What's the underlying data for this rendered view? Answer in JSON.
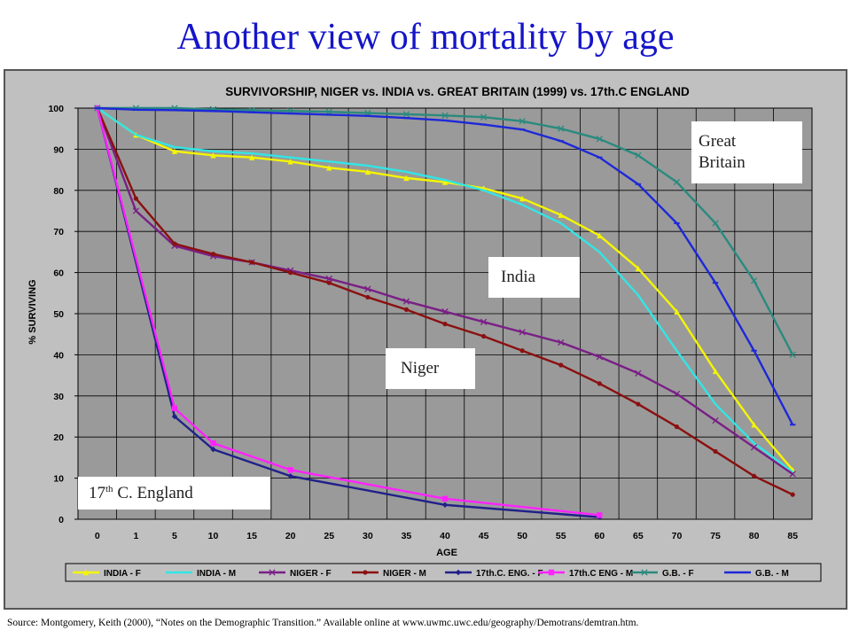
{
  "slide_title": "Another view of mortality by age",
  "source": "Source:   Montgomery, Keith (2000), “Notes on the Demographic Transition.”  Available online at www.uwmc.uwc.edu/geography/Demotrans/demtran.htm.",
  "callouts": {
    "great_britain_line1": "Great",
    "great_britain_line2": "Britain",
    "india": "India",
    "niger": "Niger",
    "england_prefix": "17",
    "england_sup": "th",
    "england_suffix": " C. England"
  },
  "chart_data": {
    "type": "line",
    "title": "SURVIVORSHIP, NIGER vs. INDIA vs. GREAT BRITAIN (1999) vs. 17th.C ENGLAND",
    "xlabel": "AGE",
    "ylabel": "% SURVIVING",
    "x": [
      0,
      1,
      5,
      10,
      15,
      20,
      25,
      30,
      35,
      40,
      45,
      50,
      55,
      60,
      65,
      70,
      75,
      80,
      85
    ],
    "x_tick_labels": [
      "0",
      "1",
      "5",
      "10",
      "15",
      "20",
      "25",
      "30",
      "35",
      "40",
      "45",
      "50",
      "55",
      "60",
      "65",
      "70",
      "75",
      "80",
      "85"
    ],
    "ylim": [
      0,
      100
    ],
    "y_ticks": [
      0,
      10,
      20,
      30,
      40,
      50,
      60,
      70,
      80,
      90,
      100
    ],
    "grid": true,
    "legend_position": "bottom",
    "series": [
      {
        "name": "INDIA - F",
        "color": "#f5f500",
        "marker": "triangle",
        "values": [
          100,
          93.5,
          89.5,
          88.5,
          88,
          87,
          85.5,
          84.5,
          83,
          82,
          80.5,
          78,
          74,
          69,
          61,
          50.5,
          36,
          23,
          12
        ]
      },
      {
        "name": "INDIA - M",
        "color": "#33e5e5",
        "marker": "none",
        "values": [
          100,
          93.5,
          90.5,
          89.5,
          89,
          88,
          87,
          86,
          84.5,
          82.5,
          80,
          76.5,
          72,
          65,
          54.5,
          41,
          28,
          18.5,
          11.5
        ]
      },
      {
        "name": "NIGER - F",
        "color": "#7a1f86",
        "marker": "cross",
        "values": [
          100,
          75,
          66.5,
          64,
          62.5,
          60.5,
          58.5,
          56,
          53,
          50.5,
          48,
          45.5,
          43,
          39.5,
          35.5,
          30.5,
          24,
          17.5,
          11
        ]
      },
      {
        "name": "NIGER - M",
        "color": "#8b1010",
        "marker": "dot",
        "values": [
          100,
          78,
          67,
          64.5,
          62.5,
          60,
          57.5,
          54,
          51,
          47.5,
          44.5,
          41,
          37.5,
          33,
          28,
          22.5,
          16.5,
          10.5,
          6
        ]
      },
      {
        "name": "17th.C. ENG. - F",
        "color": "#20208a",
        "marker": "diamond",
        "x": [
          0,
          5,
          10,
          20,
          40,
          60
        ],
        "values": [
          100,
          25,
          17,
          10.5,
          3.5,
          0.5
        ]
      },
      {
        "name": "17th.C ENG - M",
        "color": "#ff22ff",
        "marker": "square",
        "x": [
          0,
          5,
          10,
          20,
          40,
          60
        ],
        "values": [
          100,
          27,
          18.5,
          12,
          5,
          1
        ]
      },
      {
        "name": "G.B. - F",
        "color": "#2a8a7e",
        "marker": "cross",
        "values": [
          100,
          100,
          100,
          99.7,
          99.5,
          99.3,
          99.1,
          98.8,
          98.5,
          98.2,
          97.8,
          96.8,
          95,
          92.5,
          88.5,
          82,
          72,
          58,
          40
        ]
      },
      {
        "name": "G.B. - M",
        "color": "#1e28d8",
        "marker": "dash",
        "values": [
          100,
          99.6,
          99.5,
          99.3,
          99,
          98.7,
          98.4,
          98.1,
          97.6,
          97,
          96,
          94.8,
          92,
          88,
          81.5,
          72,
          57.5,
          41,
          23
        ]
      }
    ]
  }
}
